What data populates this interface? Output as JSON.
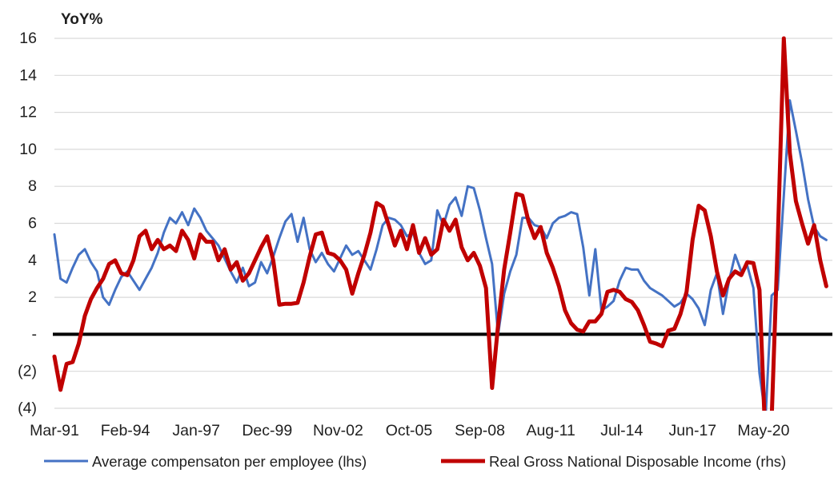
{
  "chart": {
    "y_axis_title": "YoY%",
    "background_color": "#ffffff",
    "gridline_color": "#d9d9d9",
    "zero_line_color": "#000000",
    "text_color": "#1f1f1f"
  },
  "chart_data": {
    "type": "line",
    "title": "",
    "ylabel": "YoY%",
    "xlabel": "",
    "ylim": [
      -4,
      16
    ],
    "y_tick_interval": 2,
    "y_tick_labels": [
      "16",
      "14",
      "12",
      "10",
      "8",
      "6",
      "4",
      "2",
      "-",
      "(2)",
      "(4)"
    ],
    "x_tick_labels": [
      "Mar-91",
      "Feb-94",
      "Jan-97",
      "Dec-99",
      "Nov-02",
      "Oct-05",
      "Sep-08",
      "Aug-11",
      "Jul-14",
      "Jun-17",
      "May-20"
    ],
    "x_tick_months": [
      0,
      35,
      70,
      105,
      140,
      175,
      210,
      245,
      280,
      315,
      350
    ],
    "x_domain_months": [
      0,
      384
    ],
    "frequency": "quarterly",
    "start_period": "1991Q1",
    "end_period": "2022Q4",
    "grid": true,
    "zero_line": true,
    "legend_position": "bottom",
    "series": [
      {
        "name": "Average compensaton per employee (lhs)",
        "axis": "lhs",
        "color": "#4472C4",
        "stroke_width": 3,
        "values": [
          5.4,
          3.0,
          2.8,
          3.6,
          4.3,
          4.6,
          3.9,
          3.4,
          2.0,
          1.6,
          2.4,
          3.1,
          3.4,
          2.9,
          2.4,
          3.0,
          3.6,
          4.4,
          5.5,
          6.3,
          6.0,
          6.6,
          5.9,
          6.8,
          6.3,
          5.6,
          5.2,
          4.8,
          4.1,
          3.4,
          2.8,
          3.6,
          2.6,
          2.8,
          3.9,
          3.3,
          4.2,
          5.2,
          6.1,
          6.5,
          5.0,
          6.3,
          4.6,
          3.9,
          4.4,
          3.8,
          3.4,
          4.1,
          4.8,
          4.3,
          4.5,
          4.0,
          3.5,
          4.6,
          5.9,
          6.3,
          6.2,
          5.9,
          5.3,
          5.5,
          4.4,
          3.8,
          4.0,
          6.7,
          5.9,
          7.0,
          7.4,
          6.4,
          8.0,
          7.9,
          6.7,
          5.2,
          3.8,
          0.0,
          2.2,
          3.4,
          4.3,
          6.3,
          6.3,
          5.9,
          5.8,
          5.2,
          6.0,
          6.3,
          6.4,
          6.6,
          6.5,
          4.7,
          2.1,
          4.6,
          1.3,
          1.5,
          1.8,
          2.9,
          3.6,
          3.5,
          3.5,
          2.9,
          2.5,
          2.3,
          2.1,
          1.8,
          1.5,
          1.7,
          2.2,
          1.9,
          1.4,
          0.5,
          2.4,
          3.3,
          1.1,
          2.9,
          4.3,
          3.4,
          3.7,
          2.5,
          -2.1,
          -4.5,
          2.1,
          2.4,
          7.5,
          12.65,
          11.0,
          9.3,
          7.3,
          5.8,
          5.3,
          5.1
        ]
      },
      {
        "name": "Real Gross National Disposable Income (rhs)",
        "axis": "rhs",
        "color": "#C00000",
        "stroke_width": 5,
        "values": [
          -1.2,
          -3.0,
          -1.6,
          -1.5,
          -0.5,
          1.0,
          1.9,
          2.5,
          3.0,
          3.8,
          4.0,
          3.3,
          3.2,
          4.0,
          5.3,
          5.6,
          4.6,
          5.1,
          4.6,
          4.8,
          4.5,
          5.6,
          5.1,
          4.1,
          5.4,
          5.0,
          5.0,
          4.0,
          4.6,
          3.5,
          3.9,
          2.9,
          3.3,
          4.0,
          4.7,
          5.3,
          4.0,
          1.6,
          1.65,
          1.65,
          1.7,
          2.8,
          4.2,
          5.4,
          5.5,
          4.4,
          4.3,
          4.0,
          3.5,
          2.2,
          3.3,
          4.3,
          5.5,
          7.1,
          6.9,
          5.9,
          4.8,
          5.6,
          4.6,
          5.9,
          4.4,
          5.2,
          4.3,
          4.6,
          6.2,
          5.6,
          6.2,
          4.7,
          4.0,
          4.4,
          3.7,
          2.5,
          -2.9,
          0.5,
          3.5,
          5.5,
          7.6,
          7.5,
          6.1,
          5.2,
          5.8,
          4.4,
          3.6,
          2.6,
          1.3,
          0.6,
          0.25,
          0.15,
          0.7,
          0.7,
          1.1,
          2.3,
          2.4,
          2.3,
          1.9,
          1.75,
          1.3,
          0.5,
          -0.4,
          -0.5,
          -0.65,
          0.2,
          0.3,
          1.1,
          2.3,
          5.1,
          6.95,
          6.7,
          5.3,
          3.4,
          2.1,
          3.0,
          3.4,
          3.2,
          3.9,
          3.85,
          2.4,
          -6.0,
          -4.6,
          5.0,
          16.0,
          9.8,
          7.2,
          6.0,
          4.9,
          5.9,
          4.0,
          2.6
        ]
      }
    ]
  }
}
